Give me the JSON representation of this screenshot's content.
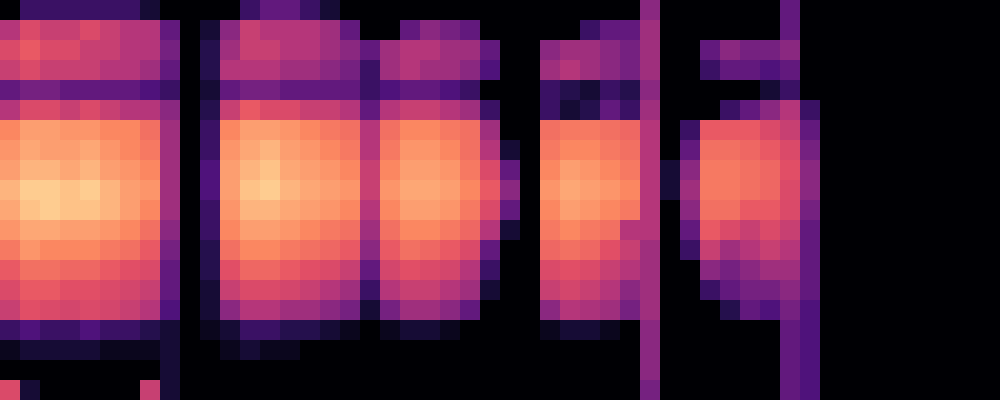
{
  "chart_data": {
    "type": "heatmap",
    "tick_labels": false,
    "cells": [
      [
        0,
        0.2,
        0.2,
        0.2,
        0.2,
        0.2,
        0.2,
        0.1,
        0,
        0,
        0,
        0,
        0.2,
        0.3,
        0.3,
        0.2,
        0.1,
        0,
        0,
        0,
        0,
        0,
        0,
        0,
        0,
        0,
        0,
        0,
        0,
        0,
        0,
        0,
        0.4,
        0,
        0,
        0,
        0,
        0,
        0,
        0.3,
        0,
        0,
        0,
        0,
        0,
        0,
        0,
        0,
        0,
        0
      ],
      [
        0.5,
        0.6,
        0.55,
        0.55,
        0.6,
        0.55,
        0.5,
        0.5,
        0.3,
        0,
        0.1,
        0.4,
        0.55,
        0.5,
        0.5,
        0.5,
        0.45,
        0.3,
        0,
        0,
        0.3,
        0.4,
        0.35,
        0.3,
        0,
        0,
        0,
        0,
        0,
        0.2,
        0.3,
        0.3,
        0.45,
        0,
        0,
        0,
        0,
        0,
        0,
        0.3,
        0,
        0,
        0,
        0,
        0,
        0,
        0,
        0,
        0,
        0
      ],
      [
        0.6,
        0.65,
        0.6,
        0.6,
        0.55,
        0.55,
        0.5,
        0.5,
        0.35,
        0,
        0.15,
        0.45,
        0.55,
        0.55,
        0.5,
        0.5,
        0.45,
        0.4,
        0.3,
        0.45,
        0.5,
        0.5,
        0.45,
        0.45,
        0.3,
        0,
        0,
        0.4,
        0.45,
        0.45,
        0.4,
        0.35,
        0.45,
        0,
        0,
        0.3,
        0.4,
        0.35,
        0.35,
        0.4,
        0,
        0,
        0,
        0,
        0,
        0,
        0,
        0,
        0,
        0
      ],
      [
        0.55,
        0.6,
        0.55,
        0.55,
        0.55,
        0.5,
        0.5,
        0.45,
        0.3,
        0,
        0.15,
        0.5,
        0.5,
        0.5,
        0.45,
        0.45,
        0.4,
        0.35,
        0.2,
        0.45,
        0.5,
        0.45,
        0.45,
        0.4,
        0.25,
        0,
        0,
        0.45,
        0.5,
        0.45,
        0.4,
        0.35,
        0.45,
        0,
        0,
        0.2,
        0.3,
        0.3,
        0.25,
        0.3,
        0,
        0,
        0,
        0,
        0,
        0,
        0,
        0,
        0,
        0
      ],
      [
        0.3,
        0.35,
        0.35,
        0.3,
        0.3,
        0.3,
        0.3,
        0.25,
        0.2,
        0,
        0.1,
        0.3,
        0.35,
        0.35,
        0.3,
        0.3,
        0.3,
        0.3,
        0.2,
        0.25,
        0.3,
        0.3,
        0.25,
        0.2,
        0,
        0,
        0,
        0.2,
        0.15,
        0.1,
        0.2,
        0.15,
        0.4,
        0,
        0,
        0,
        0,
        0,
        0.1,
        0.2,
        0,
        0,
        0,
        0,
        0,
        0,
        0,
        0,
        0,
        0
      ],
      [
        0.5,
        0.6,
        0.6,
        0.55,
        0.6,
        0.55,
        0.5,
        0.5,
        0.4,
        0,
        0.15,
        0.55,
        0.65,
        0.6,
        0.6,
        0.55,
        0.55,
        0.5,
        0.3,
        0.5,
        0.55,
        0.55,
        0.5,
        0.45,
        0.2,
        0,
        0,
        0.2,
        0.1,
        0.15,
        0.3,
        0.2,
        0.45,
        0,
        0,
        0,
        0.2,
        0.3,
        0.4,
        0.5,
        0.2,
        0,
        0,
        0,
        0,
        0,
        0,
        0,
        0,
        0
      ],
      [
        0.75,
        0.8,
        0.8,
        0.78,
        0.78,
        0.75,
        0.75,
        0.7,
        0.45,
        0,
        0.2,
        0.75,
        0.8,
        0.8,
        0.78,
        0.75,
        0.72,
        0.7,
        0.5,
        0.7,
        0.75,
        0.75,
        0.72,
        0.7,
        0.45,
        0,
        0,
        0.7,
        0.72,
        0.72,
        0.7,
        0.68,
        0.5,
        0,
        0.2,
        0.65,
        0.65,
        0.65,
        0.6,
        0.55,
        0.3,
        0,
        0,
        0,
        0,
        0,
        0,
        0,
        0,
        0
      ],
      [
        0.78,
        0.82,
        0.8,
        0.8,
        0.82,
        0.78,
        0.75,
        0.72,
        0.45,
        0,
        0.2,
        0.78,
        0.82,
        0.85,
        0.8,
        0.78,
        0.75,
        0.72,
        0.5,
        0.72,
        0.78,
        0.78,
        0.75,
        0.7,
        0.5,
        0.1,
        0,
        0.72,
        0.75,
        0.75,
        0.72,
        0.7,
        0.5,
        0,
        0.3,
        0.7,
        0.7,
        0.68,
        0.65,
        0.6,
        0.35,
        0,
        0,
        0,
        0,
        0,
        0,
        0,
        0,
        0
      ],
      [
        0.8,
        0.85,
        0.85,
        0.82,
        0.85,
        0.8,
        0.78,
        0.75,
        0.45,
        0,
        0.25,
        0.8,
        0.85,
        0.88,
        0.82,
        0.8,
        0.78,
        0.75,
        0.55,
        0.75,
        0.8,
        0.8,
        0.78,
        0.72,
        0.6,
        0.3,
        0,
        0.75,
        0.8,
        0.78,
        0.75,
        0.72,
        0.5,
        0.1,
        0.4,
        0.72,
        0.72,
        0.7,
        0.68,
        0.62,
        0.4,
        0,
        0,
        0,
        0,
        0,
        0,
        0,
        0,
        0
      ],
      [
        0.85,
        0.9,
        0.9,
        0.88,
        0.9,
        0.85,
        0.8,
        0.78,
        0.45,
        0,
        0.25,
        0.8,
        0.88,
        0.9,
        0.85,
        0.82,
        0.8,
        0.78,
        0.55,
        0.78,
        0.82,
        0.82,
        0.8,
        0.75,
        0.65,
        0.4,
        0,
        0.78,
        0.82,
        0.8,
        0.78,
        0.75,
        0.5,
        0.1,
        0.45,
        0.72,
        0.72,
        0.7,
        0.68,
        0.6,
        0.4,
        0,
        0,
        0,
        0,
        0,
        0,
        0,
        0,
        0
      ],
      [
        0.82,
        0.88,
        0.9,
        0.88,
        0.88,
        0.85,
        0.8,
        0.75,
        0.45,
        0,
        0.2,
        0.78,
        0.85,
        0.85,
        0.82,
        0.8,
        0.78,
        0.75,
        0.5,
        0.75,
        0.8,
        0.8,
        0.78,
        0.72,
        0.6,
        0.3,
        0,
        0.75,
        0.8,
        0.78,
        0.75,
        0.72,
        0.5,
        0,
        0.4,
        0.7,
        0.7,
        0.65,
        0.65,
        0.6,
        0.35,
        0,
        0,
        0,
        0,
        0,
        0,
        0,
        0,
        0
      ],
      [
        0.78,
        0.82,
        0.82,
        0.8,
        0.8,
        0.78,
        0.75,
        0.7,
        0.4,
        0,
        0.2,
        0.75,
        0.8,
        0.8,
        0.78,
        0.75,
        0.72,
        0.7,
        0.45,
        0.7,
        0.75,
        0.75,
        0.72,
        0.68,
        0.5,
        0.1,
        0,
        0.72,
        0.75,
        0.72,
        0.7,
        0.5,
        0.5,
        0,
        0.3,
        0.65,
        0.6,
        0.55,
        0.6,
        0.55,
        0.3,
        0,
        0,
        0,
        0,
        0,
        0,
        0,
        0,
        0
      ],
      [
        0.72,
        0.78,
        0.75,
        0.75,
        0.75,
        0.72,
        0.7,
        0.65,
        0.35,
        0,
        0.15,
        0.7,
        0.75,
        0.75,
        0.72,
        0.7,
        0.68,
        0.65,
        0.4,
        0.65,
        0.7,
        0.68,
        0.65,
        0.6,
        0.3,
        0,
        0,
        0.68,
        0.7,
        0.68,
        0.62,
        0.55,
        0.45,
        0,
        0.2,
        0.55,
        0.45,
        0.5,
        0.55,
        0.5,
        0.3,
        0,
        0,
        0,
        0,
        0,
        0,
        0,
        0,
        0
      ],
      [
        0.65,
        0.7,
        0.7,
        0.68,
        0.68,
        0.65,
        0.62,
        0.6,
        0.3,
        0,
        0.15,
        0.62,
        0.68,
        0.68,
        0.65,
        0.62,
        0.6,
        0.55,
        0.3,
        0.58,
        0.62,
        0.6,
        0.58,
        0.5,
        0.2,
        0,
        0,
        0.6,
        0.62,
        0.6,
        0.55,
        0.5,
        0.45,
        0,
        0,
        0.4,
        0.35,
        0.4,
        0.45,
        0.45,
        0.3,
        0,
        0,
        0,
        0,
        0,
        0,
        0,
        0,
        0
      ],
      [
        0.6,
        0.65,
        0.65,
        0.62,
        0.62,
        0.6,
        0.58,
        0.55,
        0.3,
        0,
        0.1,
        0.55,
        0.6,
        0.6,
        0.58,
        0.55,
        0.5,
        0.45,
        0.2,
        0.5,
        0.55,
        0.55,
        0.5,
        0.45,
        0.1,
        0,
        0,
        0.55,
        0.58,
        0.55,
        0.5,
        0.4,
        0.45,
        0,
        0,
        0.2,
        0.3,
        0.35,
        0.35,
        0.4,
        0.3,
        0,
        0,
        0,
        0,
        0,
        0,
        0,
        0,
        0
      ],
      [
        0.55,
        0.62,
        0.6,
        0.58,
        0.6,
        0.58,
        0.55,
        0.5,
        0.25,
        0,
        0.1,
        0.4,
        0.5,
        0.5,
        0.45,
        0.45,
        0.4,
        0.35,
        0.1,
        0.35,
        0.45,
        0.45,
        0.4,
        0.3,
        0,
        0,
        0,
        0.4,
        0.5,
        0.48,
        0.45,
        0.35,
        0.45,
        0,
        0,
        0,
        0.15,
        0.3,
        0.25,
        0.35,
        0.25,
        0,
        0,
        0,
        0,
        0,
        0,
        0,
        0,
        0
      ],
      [
        0.2,
        0.25,
        0.2,
        0.2,
        0.25,
        0.2,
        0.2,
        0.15,
        0.1,
        0,
        0.05,
        0.1,
        0.2,
        0.2,
        0.15,
        0.15,
        0.1,
        0.05,
        0,
        0.05,
        0.1,
        0.1,
        0.05,
        0,
        0,
        0,
        0,
        0.05,
        0.1,
        0.1,
        0.05,
        0,
        0.4,
        0,
        0,
        0,
        0,
        0,
        0,
        0.3,
        0.25,
        0,
        0,
        0,
        0,
        0,
        0,
        0,
        0,
        0
      ],
      [
        0.05,
        0.1,
        0.1,
        0.1,
        0.1,
        0.05,
        0.05,
        0.05,
        0.1,
        0,
        0,
        0.05,
        0.1,
        0.05,
        0.05,
        0,
        0,
        0,
        0,
        0,
        0,
        0,
        0,
        0,
        0,
        0,
        0,
        0,
        0,
        0,
        0,
        0,
        0.4,
        0,
        0,
        0,
        0,
        0,
        0,
        0.3,
        0.25,
        0,
        0,
        0,
        0,
        0,
        0,
        0,
        0,
        0
      ],
      [
        0,
        0,
        0,
        0,
        0,
        0,
        0,
        0,
        0.1,
        0,
        0,
        0,
        0,
        0,
        0,
        0,
        0,
        0,
        0,
        0,
        0,
        0,
        0,
        0,
        0,
        0,
        0,
        0,
        0,
        0,
        0,
        0,
        0.4,
        0,
        0,
        0,
        0,
        0,
        0,
        0.3,
        0.25,
        0,
        0,
        0,
        0,
        0,
        0,
        0,
        0,
        0
      ],
      [
        0.6,
        0.1,
        0,
        0,
        0,
        0,
        0,
        0.55,
        0.1,
        0,
        0,
        0,
        0,
        0,
        0,
        0,
        0,
        0,
        0,
        0,
        0,
        0,
        0,
        0,
        0,
        0,
        0,
        0,
        0,
        0,
        0,
        0,
        0.35,
        0,
        0,
        0,
        0,
        0,
        0,
        0.3,
        0.25,
        0,
        0,
        0,
        0,
        0,
        0,
        0,
        0,
        0
      ]
    ]
  }
}
